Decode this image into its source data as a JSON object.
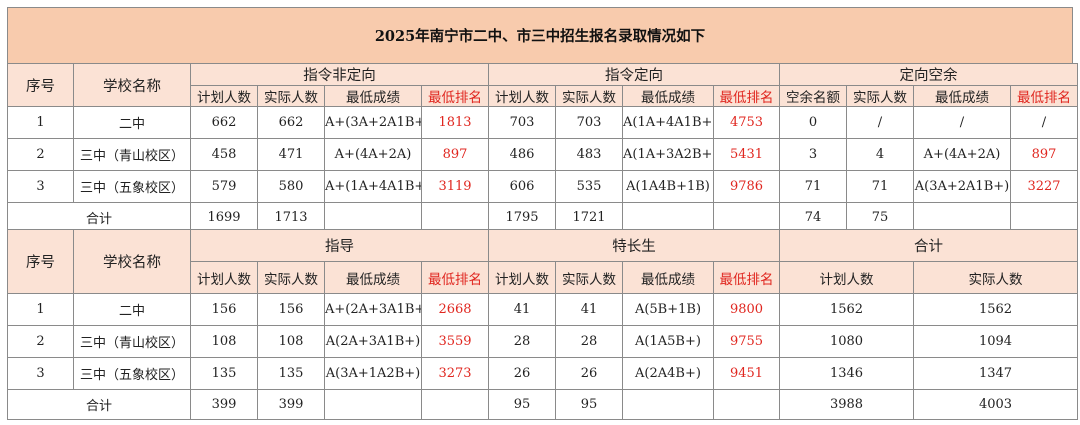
{
  "title": "2025年南宁市二中、市三中招生报名录取情况如下",
  "table1": {
    "col_seq": "序号",
    "col_school": "学校名称",
    "groups": [
      "指令非定向",
      "指令定向",
      "定向空余"
    ],
    "sub_a": [
      "计划人数",
      "实际人数",
      "最低成绩",
      "最低排名"
    ],
    "sub_b": [
      "计划人数",
      "实际人数",
      "最低成绩",
      "最低排名"
    ],
    "sub_c": [
      "空余名额",
      "实际人数",
      "最低成绩",
      "最低排名"
    ],
    "rows": [
      {
        "seq": "1",
        "school": "二中",
        "a": [
          "662",
          "662",
          "A+(3A+2A1B+)",
          "1813"
        ],
        "b": [
          "703",
          "703",
          "A(1A+4A1B+)",
          "4753"
        ],
        "c": [
          "0",
          "/",
          "/",
          "/"
        ]
      },
      {
        "seq": "2",
        "school": "三中（青山校区）",
        "a": [
          "458",
          "471",
          "A+(4A+2A)",
          "897"
        ],
        "b": [
          "486",
          "483",
          "A(1A+3A2B+)",
          "5431"
        ],
        "c": [
          "3",
          "4",
          "A+(4A+2A)",
          "897"
        ]
      },
      {
        "seq": "3",
        "school": "三中（五象校区）",
        "a": [
          "579",
          "580",
          "A+(1A+4A1B+)",
          "3119"
        ],
        "b": [
          "606",
          "535",
          "A(1A4B+1B)",
          "9786"
        ],
        "c": [
          "71",
          "71",
          "A(3A+2A1B+)",
          "3227"
        ]
      }
    ],
    "total": {
      "label": "合计",
      "a": [
        "1699",
        "1713"
      ],
      "b": [
        "1795",
        "1721"
      ],
      "c": [
        "74",
        "75"
      ]
    }
  },
  "table2": {
    "col_seq": "序号",
    "col_school": "学校名称",
    "groups": [
      "指导",
      "特长生",
      "合计"
    ],
    "sub_a": [
      "计划人数",
      "实际人数",
      "最低成绩",
      "最低排名"
    ],
    "sub_b": [
      "计划人数",
      "实际人数",
      "最低成绩",
      "最低排名"
    ],
    "sub_c": [
      "计划人数",
      "实际人数"
    ],
    "rows": [
      {
        "seq": "1",
        "school": "二中",
        "a": [
          "156",
          "156",
          "A+(2A+3A1B+)",
          "2668"
        ],
        "b": [
          "41",
          "41",
          "A(5B+1B)",
          "9800"
        ],
        "c": [
          "1562",
          "1562"
        ]
      },
      {
        "seq": "2",
        "school": "三中（青山校区）",
        "a": [
          "108",
          "108",
          "A(2A+3A1B+)",
          "3559"
        ],
        "b": [
          "28",
          "28",
          "A(1A5B+)",
          "9755"
        ],
        "c": [
          "1080",
          "1094"
        ]
      },
      {
        "seq": "3",
        "school": "三中（五象校区）",
        "a": [
          "135",
          "135",
          "A(3A+1A2B+)",
          "3273"
        ],
        "b": [
          "26",
          "26",
          "A(2A4B+)",
          "9451"
        ],
        "c": [
          "1346",
          "1347"
        ]
      }
    ],
    "total": {
      "label": "合计",
      "a": [
        "399",
        "399"
      ],
      "b": [
        "95",
        "95"
      ],
      "c": [
        "3988",
        "4003"
      ]
    }
  }
}
